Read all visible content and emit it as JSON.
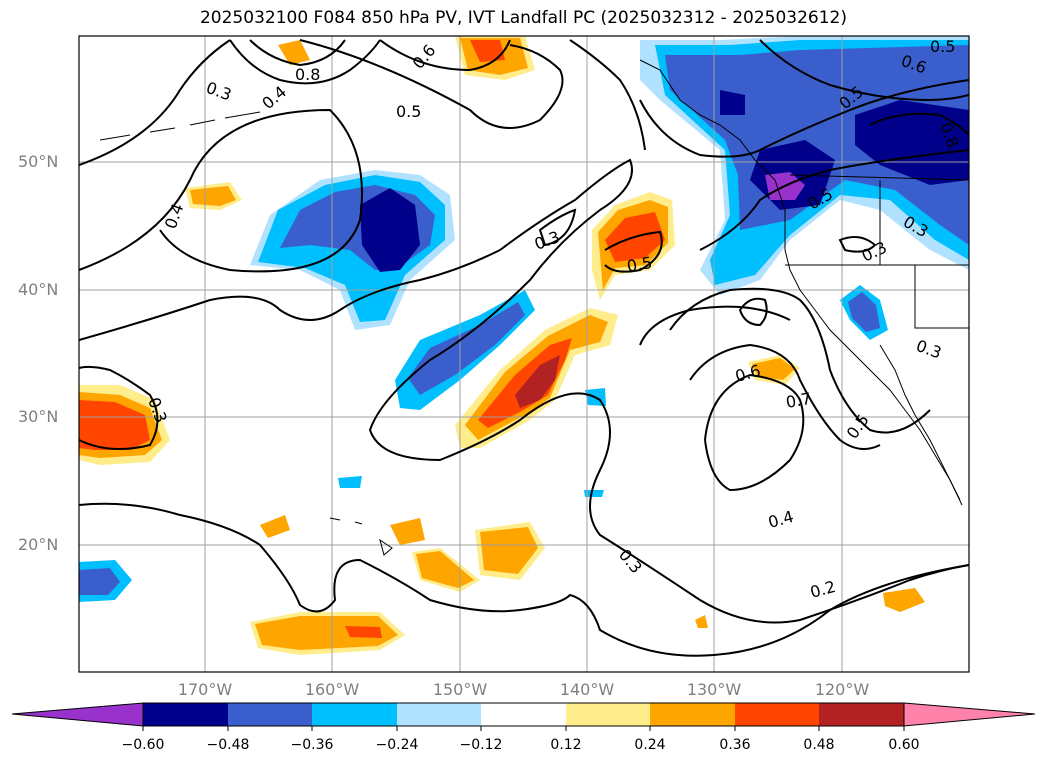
{
  "title": "2025032100 F084 850 hPa PV, IVT Landfall PC (2025032312 - 2025032612)",
  "lon_labels": [
    "170°W",
    "160°W",
    "150°W",
    "140°W",
    "130°W",
    "120°W"
  ],
  "lat_labels": [
    "50°N",
    "40°N",
    "30°N",
    "20°N"
  ],
  "colorbar": {
    "ticks": [
      "−0.60",
      "−0.48",
      "−0.36",
      "−0.24",
      "−0.12",
      "0.12",
      "0.24",
      "0.36",
      "0.48",
      "0.60"
    ],
    "colors": [
      "#9932CC",
      "#00008B",
      "#3A5FCD",
      "#00BFFF",
      "#B0E2FF",
      "#FFFFFF",
      "#FFEC8B",
      "#FFA500",
      "#FF4500",
      "#B22222",
      "#FF82AB"
    ]
  },
  "contour_labels": [
    "0.3",
    "0.8",
    "0.6",
    "0.5",
    "0.4",
    "0.4",
    "0.3",
    "0.5",
    "0.5",
    "0.5",
    "0.6",
    "0.5",
    "0.3",
    "0.8",
    "0.3",
    "0.3",
    "0.6",
    "0.7",
    "0.5",
    "0.4",
    "0.3",
    "0.2"
  ],
  "colors": {
    "contour": "#000000",
    "grid": "#a0a0a0",
    "land": "#ffffff"
  }
}
